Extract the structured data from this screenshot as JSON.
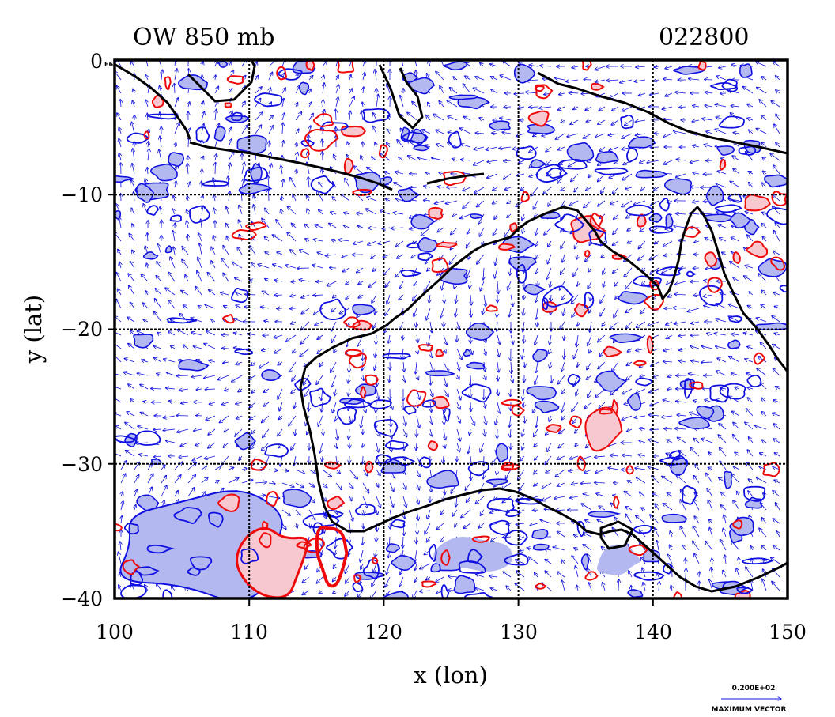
{
  "title_left": "OW 850 mb",
  "title_right": "022800",
  "corner_tag": "E6",
  "axes": {
    "xlabel": "x (lon)",
    "ylabel": "y (lat)",
    "x_ticks": [
      "100",
      "110",
      "120",
      "130",
      "140",
      "150"
    ],
    "y_ticks": [
      "0",
      "−10",
      "−20",
      "−30",
      "−40"
    ],
    "xlim": [
      100,
      150
    ],
    "ylim": [
      -40,
      0
    ]
  },
  "reference_vector": {
    "magnitude_label": "0.200E+02",
    "caption": "MAXIMUM VECTOR"
  },
  "colors": {
    "negative_fill": "#b3b8f0",
    "negative_line": "#1010e0",
    "positive_fill": "#f7c8cf",
    "positive_line": "#ee0a0a",
    "coastline": "#000000",
    "vectors": "#1010e0"
  },
  "legend": "none",
  "grid": true
}
